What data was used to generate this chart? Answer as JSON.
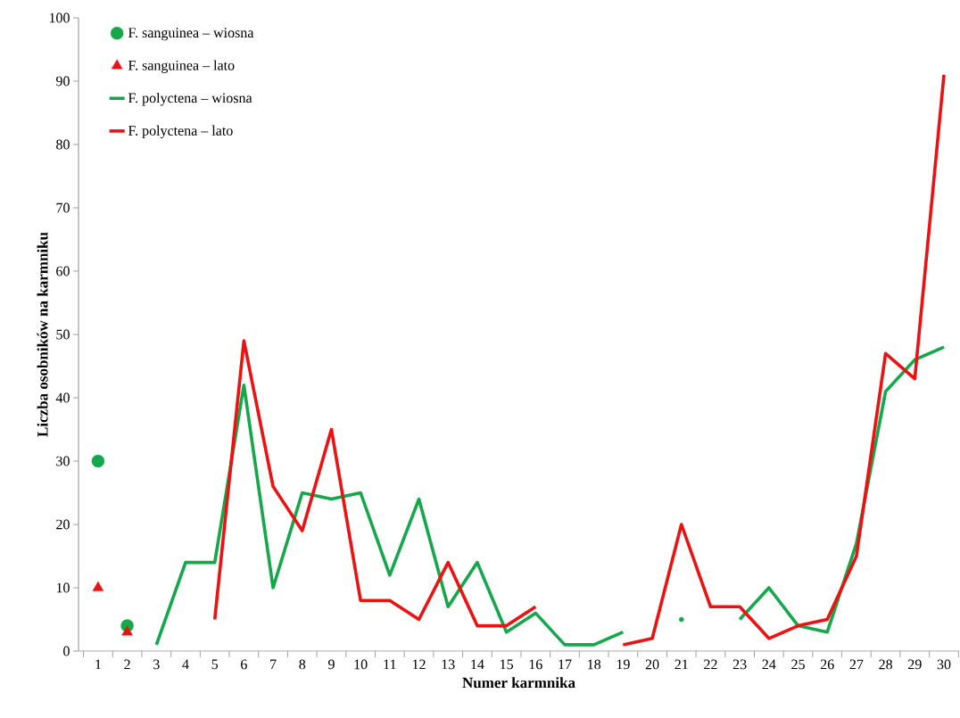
{
  "chart_data": {
    "type": "line",
    "xlabel": "Numer karmnika",
    "ylabel": "Liczba osobników na karmniku",
    "categories": [
      "1",
      "2",
      "3",
      "4",
      "5",
      "6",
      "7",
      "8",
      "9",
      "10",
      "11",
      "12",
      "13",
      "14",
      "15",
      "16",
      "17",
      "18",
      "19",
      "20",
      "21",
      "22",
      "23",
      "24",
      "25",
      "26",
      "27",
      "28",
      "29",
      "30"
    ],
    "series": [
      {
        "name": "F. sanguinea – wiosna",
        "type": "scatter",
        "marker": "circle",
        "color": "#14a84b",
        "x": [
          "1",
          "2"
        ],
        "values": [
          30,
          4
        ]
      },
      {
        "name": "F. sanguinea – lato",
        "type": "scatter",
        "marker": "triangle",
        "color": "#ee1111",
        "x": [
          "1",
          "2"
        ],
        "values": [
          10,
          3
        ]
      },
      {
        "name": "F. polyctena – wiosna",
        "color": "#14a84b",
        "values": [
          null,
          null,
          1,
          14,
          14,
          42,
          10,
          25,
          24,
          25,
          12,
          24,
          7,
          14,
          3,
          6,
          1,
          1,
          3,
          null,
          5,
          null,
          5,
          10,
          4,
          3,
          17,
          41,
          46,
          48
        ]
      },
      {
        "name": "F. polyctena – lato",
        "color": "#ee1111",
        "values": [
          null,
          null,
          null,
          null,
          5,
          49,
          26,
          19,
          35,
          8,
          8,
          5,
          14,
          4,
          4,
          7,
          null,
          null,
          1,
          2,
          20,
          7,
          7,
          2,
          4,
          5,
          15,
          47,
          43,
          91
        ]
      }
    ],
    "ylim": [
      0,
      100
    ],
    "yticks": [
      0,
      10,
      20,
      30,
      40,
      50,
      60,
      70,
      80,
      90,
      100
    ],
    "legend": "top left"
  }
}
